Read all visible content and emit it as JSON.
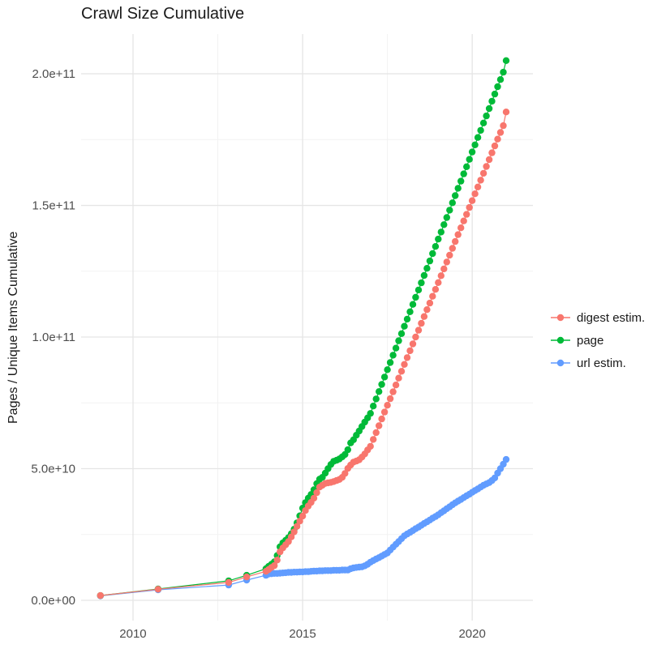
{
  "page": {
    "background": "#ffffff"
  },
  "chart_data": {
    "type": "scatter",
    "title": "Crawl Size Cumulative",
    "xlabel": "",
    "ylabel": "Pages / Unique Items Cumulative",
    "legend_position": "right",
    "grid": {
      "shown": true,
      "major_color": "#e5e5e5",
      "minor_color": "#f2f2f2"
    },
    "text_colors": {
      "title": "#1a1a1a",
      "axis_text": "#4d4d4d",
      "legend_text": "#1a1a1a"
    },
    "y_value_unit": 10000000000,
    "note": "point values are in units of 1e10 pages/items; x is decimal year",
    "axes": {
      "x_min": 2008.47,
      "x_max": 2021.79,
      "y_min": -0.77,
      "y_max": 21.51,
      "x_ticks": [
        {
          "v": 2010,
          "label": "2010"
        },
        {
          "v": 2015,
          "label": "2015"
        },
        {
          "v": 2020,
          "label": "2020"
        }
      ],
      "x_minor_ticks": [
        2012.5,
        2017.5
      ],
      "y_ticks": [
        {
          "v": 0,
          "label": "0.0e+00"
        },
        {
          "v": 5,
          "label": "5.0e+10"
        },
        {
          "v": 10,
          "label": "1.0e+11"
        },
        {
          "v": 15,
          "label": "1.5e+11"
        },
        {
          "v": 20,
          "label": "2.0e+11"
        }
      ],
      "y_minor_ticks": [
        2.5,
        7.5,
        12.5,
        17.5
      ]
    },
    "series": [
      {
        "name": "digest estim.",
        "color": "#F8766D",
        "z": 3,
        "points": [
          [
            2009.04,
            0.18
          ],
          [
            2010.74,
            0.42
          ],
          [
            2012.82,
            0.68
          ],
          [
            2013.35,
            0.89
          ],
          [
            2013.92,
            1.1
          ],
          [
            2014.0,
            1.17
          ],
          [
            2014.083,
            1.25
          ],
          [
            2014.167,
            1.32
          ],
          [
            2014.25,
            1.53
          ],
          [
            2014.333,
            1.84
          ],
          [
            2014.417,
            1.99
          ],
          [
            2014.5,
            2.11
          ],
          [
            2014.583,
            2.23
          ],
          [
            2014.667,
            2.41
          ],
          [
            2014.75,
            2.6
          ],
          [
            2014.833,
            2.81
          ],
          [
            2014.917,
            3.01
          ],
          [
            2015.0,
            3.2
          ],
          [
            2015.083,
            3.41
          ],
          [
            2015.167,
            3.58
          ],
          [
            2015.25,
            3.72
          ],
          [
            2015.333,
            3.88
          ],
          [
            2015.417,
            4.09
          ],
          [
            2015.5,
            4.3
          ],
          [
            2015.583,
            4.37
          ],
          [
            2015.667,
            4.44
          ],
          [
            2015.75,
            4.46
          ],
          [
            2015.833,
            4.48
          ],
          [
            2015.917,
            4.51
          ],
          [
            2016.0,
            4.55
          ],
          [
            2016.083,
            4.59
          ],
          [
            2016.167,
            4.67
          ],
          [
            2016.25,
            4.82
          ],
          [
            2016.333,
            5.01
          ],
          [
            2016.417,
            5.14
          ],
          [
            2016.5,
            5.25
          ],
          [
            2016.583,
            5.29
          ],
          [
            2016.667,
            5.34
          ],
          [
            2016.75,
            5.44
          ],
          [
            2016.833,
            5.56
          ],
          [
            2016.917,
            5.71
          ],
          [
            2017.0,
            5.85
          ],
          [
            2017.083,
            6.11
          ],
          [
            2017.167,
            6.37
          ],
          [
            2017.25,
            6.63
          ],
          [
            2017.333,
            6.89
          ],
          [
            2017.417,
            7.15
          ],
          [
            2017.5,
            7.41
          ],
          [
            2017.583,
            7.66
          ],
          [
            2017.667,
            7.92
          ],
          [
            2017.75,
            8.18
          ],
          [
            2017.833,
            8.44
          ],
          [
            2017.917,
            8.7
          ],
          [
            2018.0,
            8.96
          ],
          [
            2018.083,
            9.22
          ],
          [
            2018.167,
            9.48
          ],
          [
            2018.25,
            9.74
          ],
          [
            2018.333,
            10.0
          ],
          [
            2018.417,
            10.26
          ],
          [
            2018.5,
            10.52
          ],
          [
            2018.583,
            10.78
          ],
          [
            2018.667,
            11.04
          ],
          [
            2018.75,
            11.29
          ],
          [
            2018.833,
            11.55
          ],
          [
            2018.917,
            11.81
          ],
          [
            2019.0,
            12.07
          ],
          [
            2019.083,
            12.33
          ],
          [
            2019.167,
            12.59
          ],
          [
            2019.25,
            12.85
          ],
          [
            2019.333,
            13.11
          ],
          [
            2019.417,
            13.37
          ],
          [
            2019.5,
            13.63
          ],
          [
            2019.583,
            13.89
          ],
          [
            2019.667,
            14.15
          ],
          [
            2019.75,
            14.41
          ],
          [
            2019.833,
            14.66
          ],
          [
            2019.917,
            14.92
          ],
          [
            2020.0,
            15.18
          ],
          [
            2020.083,
            15.44
          ],
          [
            2020.167,
            15.7
          ],
          [
            2020.25,
            15.96
          ],
          [
            2020.333,
            16.22
          ],
          [
            2020.417,
            16.48
          ],
          [
            2020.5,
            16.74
          ],
          [
            2020.583,
            17.0
          ],
          [
            2020.667,
            17.26
          ],
          [
            2020.75,
            17.52
          ],
          [
            2020.833,
            17.77
          ],
          [
            2020.917,
            18.03
          ],
          [
            2021.0,
            18.55
          ]
        ]
      },
      {
        "name": "page",
        "color": "#00BA38",
        "z": 2,
        "points": [
          [
            2009.04,
            0.18
          ],
          [
            2010.74,
            0.43
          ],
          [
            2012.82,
            0.74
          ],
          [
            2013.35,
            0.95
          ],
          [
            2013.92,
            1.2
          ],
          [
            2014.0,
            1.29
          ],
          [
            2014.083,
            1.37
          ],
          [
            2014.167,
            1.46
          ],
          [
            2014.25,
            1.7
          ],
          [
            2014.333,
            2.03
          ],
          [
            2014.417,
            2.18
          ],
          [
            2014.5,
            2.28
          ],
          [
            2014.583,
            2.38
          ],
          [
            2014.667,
            2.53
          ],
          [
            2014.75,
            2.7
          ],
          [
            2014.833,
            2.94
          ],
          [
            2014.917,
            3.21
          ],
          [
            2015.0,
            3.5
          ],
          [
            2015.083,
            3.71
          ],
          [
            2015.167,
            3.88
          ],
          [
            2015.25,
            4.02
          ],
          [
            2015.333,
            4.2
          ],
          [
            2015.417,
            4.43
          ],
          [
            2015.5,
            4.6
          ],
          [
            2015.583,
            4.67
          ],
          [
            2015.667,
            4.83
          ],
          [
            2015.75,
            5.0
          ],
          [
            2015.833,
            5.16
          ],
          [
            2015.917,
            5.28
          ],
          [
            2016.0,
            5.32
          ],
          [
            2016.083,
            5.37
          ],
          [
            2016.167,
            5.45
          ],
          [
            2016.25,
            5.54
          ],
          [
            2016.333,
            5.72
          ],
          [
            2016.417,
            5.98
          ],
          [
            2016.5,
            6.1
          ],
          [
            2016.583,
            6.27
          ],
          [
            2016.667,
            6.43
          ],
          [
            2016.75,
            6.6
          ],
          [
            2016.833,
            6.77
          ],
          [
            2016.917,
            6.93
          ],
          [
            2017.0,
            7.1
          ],
          [
            2017.083,
            7.38
          ],
          [
            2017.167,
            7.65
          ],
          [
            2017.25,
            7.93
          ],
          [
            2017.333,
            8.2
          ],
          [
            2017.417,
            8.48
          ],
          [
            2017.5,
            8.76
          ],
          [
            2017.583,
            9.03
          ],
          [
            2017.667,
            9.31
          ],
          [
            2017.75,
            9.58
          ],
          [
            2017.833,
            9.86
          ],
          [
            2017.917,
            10.13
          ],
          [
            2018.0,
            10.41
          ],
          [
            2018.083,
            10.68
          ],
          [
            2018.167,
            10.96
          ],
          [
            2018.25,
            11.24
          ],
          [
            2018.333,
            11.51
          ],
          [
            2018.417,
            11.79
          ],
          [
            2018.5,
            12.06
          ],
          [
            2018.583,
            12.34
          ],
          [
            2018.667,
            12.61
          ],
          [
            2018.75,
            12.89
          ],
          [
            2018.833,
            13.17
          ],
          [
            2018.917,
            13.44
          ],
          [
            2019.0,
            13.72
          ],
          [
            2019.083,
            13.99
          ],
          [
            2019.167,
            14.27
          ],
          [
            2019.25,
            14.54
          ],
          [
            2019.333,
            14.82
          ],
          [
            2019.417,
            15.1
          ],
          [
            2019.5,
            15.37
          ],
          [
            2019.583,
            15.65
          ],
          [
            2019.667,
            15.92
          ],
          [
            2019.75,
            16.2
          ],
          [
            2019.833,
            16.47
          ],
          [
            2019.917,
            16.75
          ],
          [
            2020.0,
            17.03
          ],
          [
            2020.083,
            17.3
          ],
          [
            2020.167,
            17.58
          ],
          [
            2020.25,
            17.85
          ],
          [
            2020.333,
            18.13
          ],
          [
            2020.417,
            18.4
          ],
          [
            2020.5,
            18.68
          ],
          [
            2020.583,
            18.96
          ],
          [
            2020.667,
            19.23
          ],
          [
            2020.75,
            19.51
          ],
          [
            2020.833,
            19.78
          ],
          [
            2020.917,
            20.06
          ],
          [
            2021.0,
            20.5
          ]
        ]
      },
      {
        "name": "url estim.",
        "color": "#619CFF",
        "z": 1,
        "points": [
          [
            2009.04,
            0.17
          ],
          [
            2010.74,
            0.4
          ],
          [
            2012.82,
            0.58
          ],
          [
            2013.35,
            0.77
          ],
          [
            2013.92,
            0.95
          ],
          [
            2014.0,
            1.0
          ],
          [
            2014.083,
            1.01
          ],
          [
            2014.167,
            1.02
          ],
          [
            2014.25,
            1.02
          ],
          [
            2014.333,
            1.03
          ],
          [
            2014.417,
            1.04
          ],
          [
            2014.5,
            1.05
          ],
          [
            2014.583,
            1.06
          ],
          [
            2014.667,
            1.06
          ],
          [
            2014.75,
            1.07
          ],
          [
            2014.833,
            1.07
          ],
          [
            2014.917,
            1.08
          ],
          [
            2015.0,
            1.08
          ],
          [
            2015.083,
            1.09
          ],
          [
            2015.167,
            1.09
          ],
          [
            2015.25,
            1.1
          ],
          [
            2015.333,
            1.11
          ],
          [
            2015.417,
            1.11
          ],
          [
            2015.5,
            1.12
          ],
          [
            2015.583,
            1.12
          ],
          [
            2015.667,
            1.13
          ],
          [
            2015.75,
            1.13
          ],
          [
            2015.833,
            1.13
          ],
          [
            2015.917,
            1.14
          ],
          [
            2016.0,
            1.14
          ],
          [
            2016.083,
            1.14
          ],
          [
            2016.167,
            1.15
          ],
          [
            2016.25,
            1.15
          ],
          [
            2016.333,
            1.15
          ],
          [
            2016.417,
            1.2
          ],
          [
            2016.5,
            1.23
          ],
          [
            2016.583,
            1.25
          ],
          [
            2016.667,
            1.26
          ],
          [
            2016.75,
            1.27
          ],
          [
            2016.833,
            1.31
          ],
          [
            2016.917,
            1.37
          ],
          [
            2017.0,
            1.45
          ],
          [
            2017.083,
            1.51
          ],
          [
            2017.167,
            1.57
          ],
          [
            2017.25,
            1.62
          ],
          [
            2017.333,
            1.68
          ],
          [
            2017.417,
            1.74
          ],
          [
            2017.5,
            1.8
          ],
          [
            2017.583,
            1.91
          ],
          [
            2017.667,
            2.02
          ],
          [
            2017.75,
            2.13
          ],
          [
            2017.833,
            2.23
          ],
          [
            2017.917,
            2.34
          ],
          [
            2018.0,
            2.45
          ],
          [
            2018.083,
            2.52
          ],
          [
            2018.167,
            2.58
          ],
          [
            2018.25,
            2.65
          ],
          [
            2018.333,
            2.72
          ],
          [
            2018.417,
            2.78
          ],
          [
            2018.5,
            2.85
          ],
          [
            2018.583,
            2.92
          ],
          [
            2018.667,
            2.98
          ],
          [
            2018.75,
            3.05
          ],
          [
            2018.833,
            3.12
          ],
          [
            2018.917,
            3.18
          ],
          [
            2019.0,
            3.25
          ],
          [
            2019.083,
            3.33
          ],
          [
            2019.167,
            3.4
          ],
          [
            2019.25,
            3.48
          ],
          [
            2019.333,
            3.55
          ],
          [
            2019.417,
            3.63
          ],
          [
            2019.5,
            3.7
          ],
          [
            2019.583,
            3.77
          ],
          [
            2019.667,
            3.83
          ],
          [
            2019.75,
            3.9
          ],
          [
            2019.833,
            3.97
          ],
          [
            2019.917,
            4.03
          ],
          [
            2020.0,
            4.1
          ],
          [
            2020.083,
            4.17
          ],
          [
            2020.167,
            4.23
          ],
          [
            2020.25,
            4.3
          ],
          [
            2020.333,
            4.37
          ],
          [
            2020.417,
            4.42
          ],
          [
            2020.5,
            4.47
          ],
          [
            2020.583,
            4.55
          ],
          [
            2020.667,
            4.65
          ],
          [
            2020.75,
            4.83
          ],
          [
            2020.833,
            5.0
          ],
          [
            2020.917,
            5.17
          ],
          [
            2021.0,
            5.35
          ]
        ]
      }
    ]
  }
}
